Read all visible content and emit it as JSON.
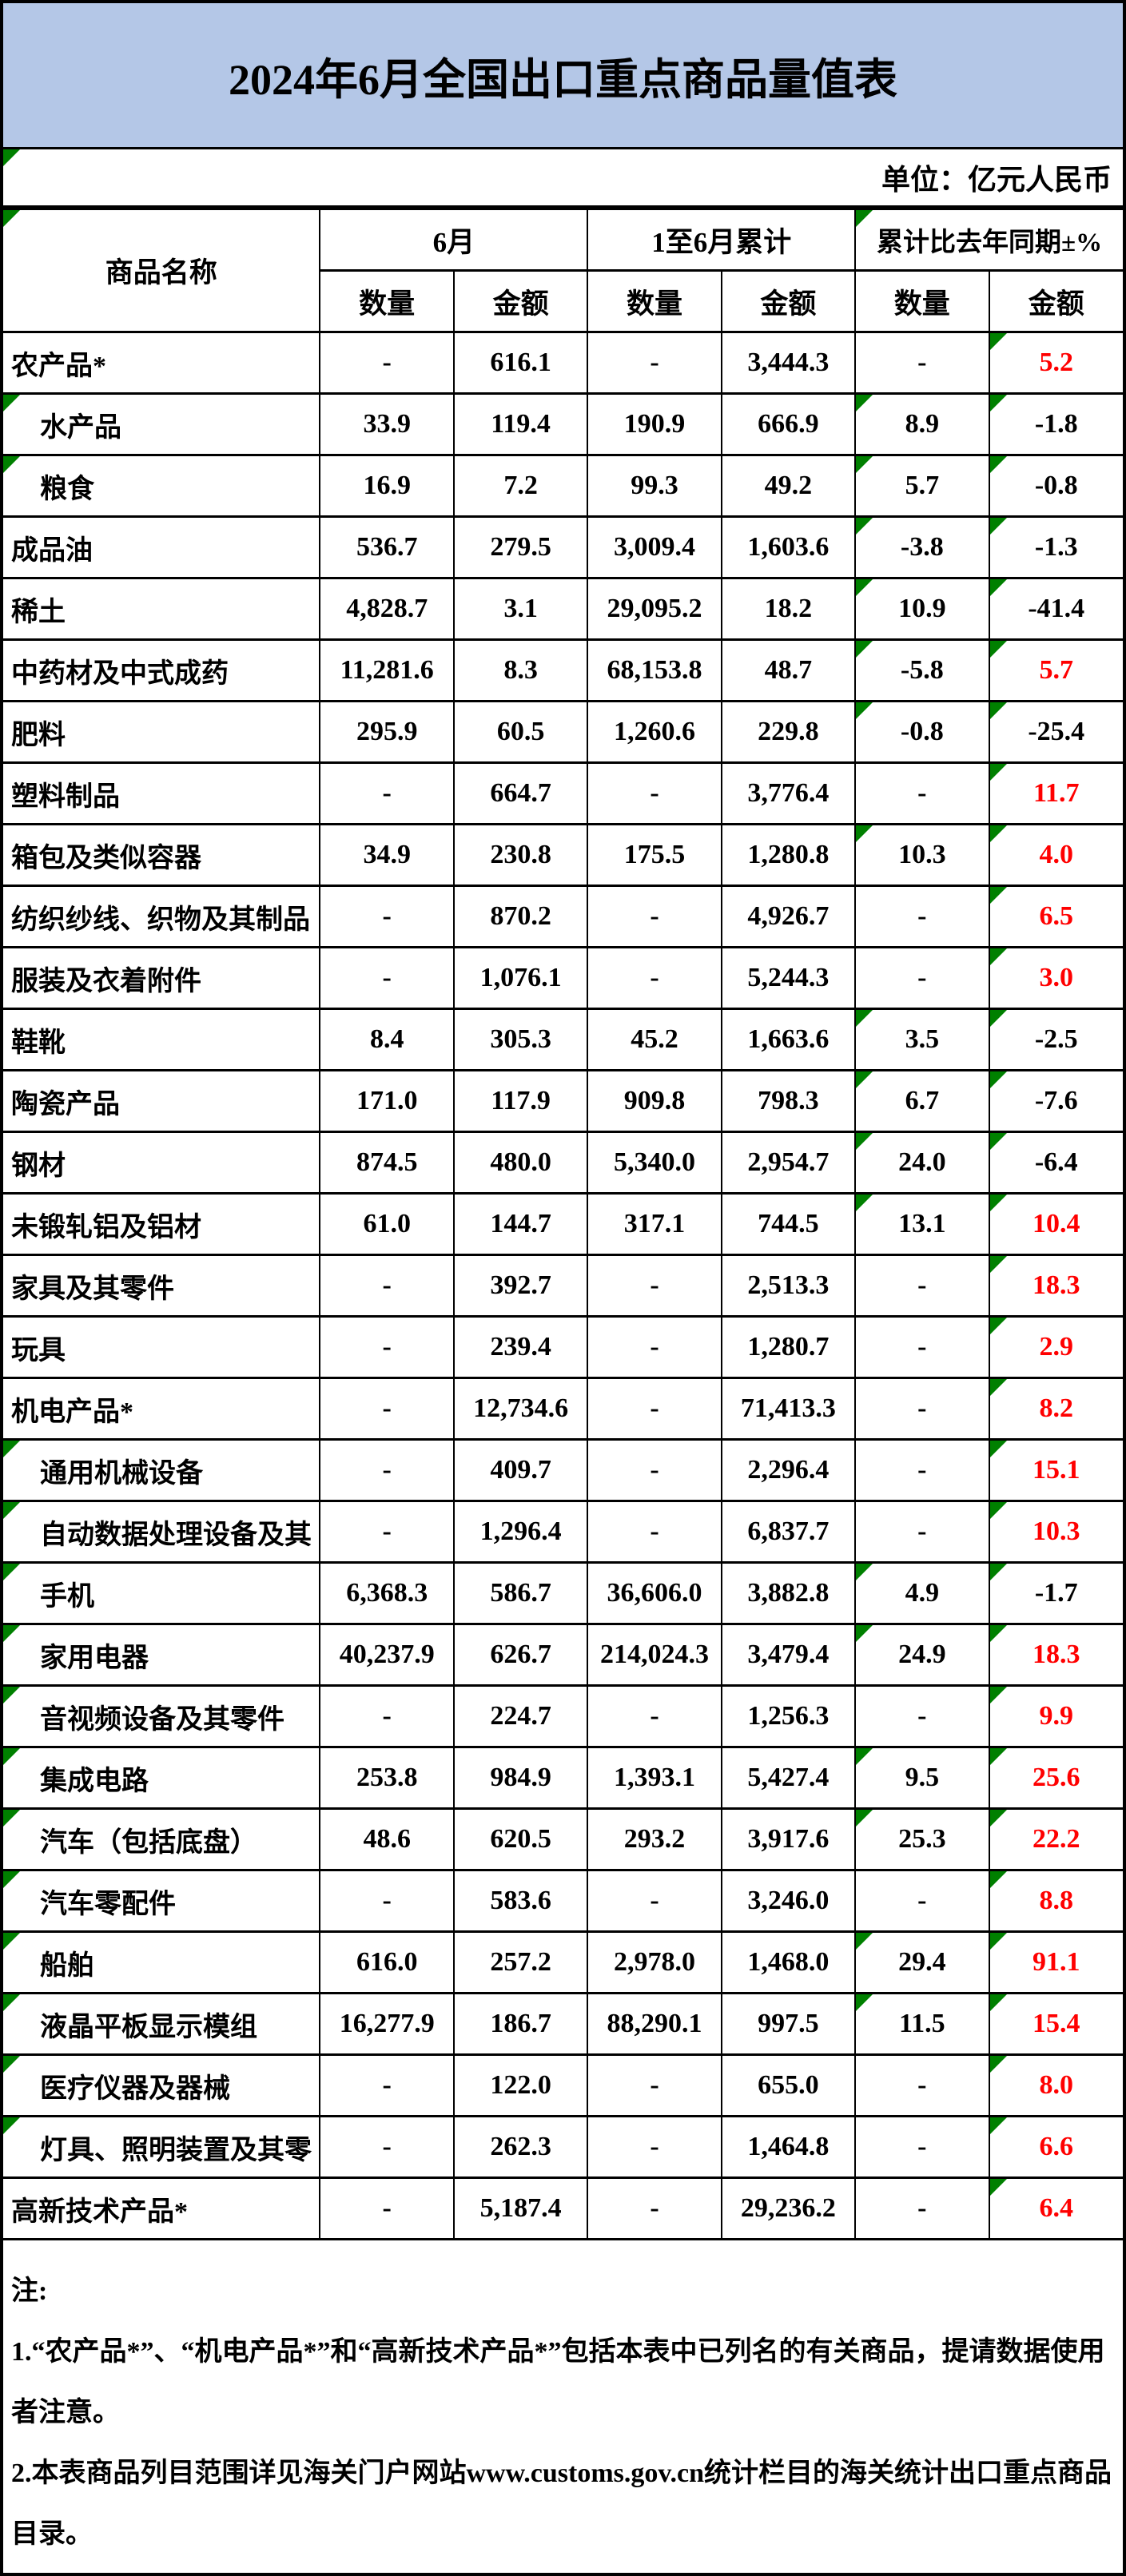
{
  "page": {
    "title": "2024年6月全国出口重点商品量值表"
  },
  "unit_label": "单位：亿元人民币",
  "table": {
    "headers": {
      "commodity": "商品名称",
      "june": "6月",
      "cumulative": "1至6月累计",
      "yoy": "累计比去年同期±%",
      "qty": "数量",
      "amt": "金额"
    },
    "rows": [
      {
        "name": "农产品*",
        "indent": false,
        "q6": "-",
        "a6": "616.1",
        "qc": "-",
        "ac": "3,444.3",
        "qp": "-",
        "ap": "5.2"
      },
      {
        "name": "水产品",
        "indent": true,
        "q6": "33.9",
        "a6": "119.4",
        "qc": "190.9",
        "ac": "666.9",
        "qp": "8.9",
        "ap": "-1.8"
      },
      {
        "name": "粮食",
        "indent": true,
        "q6": "16.9",
        "a6": "7.2",
        "qc": "99.3",
        "ac": "49.2",
        "qp": "5.7",
        "ap": "-0.8"
      },
      {
        "name": "成品油",
        "indent": false,
        "q6": "536.7",
        "a6": "279.5",
        "qc": "3,009.4",
        "ac": "1,603.6",
        "qp": "-3.8",
        "ap": "-1.3"
      },
      {
        "name": "稀土",
        "indent": false,
        "q6": "4,828.7",
        "a6": "3.1",
        "qc": "29,095.2",
        "ac": "18.2",
        "qp": "10.9",
        "ap": "-41.4"
      },
      {
        "name": "中药材及中式成药",
        "indent": false,
        "q6": "11,281.6",
        "a6": "8.3",
        "qc": "68,153.8",
        "ac": "48.7",
        "qp": "-5.8",
        "ap": "5.7"
      },
      {
        "name": "肥料",
        "indent": false,
        "q6": "295.9",
        "a6": "60.5",
        "qc": "1,260.6",
        "ac": "229.8",
        "qp": "-0.8",
        "ap": "-25.4"
      },
      {
        "name": "塑料制品",
        "indent": false,
        "q6": "-",
        "a6": "664.7",
        "qc": "-",
        "ac": "3,776.4",
        "qp": "-",
        "ap": "11.7"
      },
      {
        "name": "箱包及类似容器",
        "indent": false,
        "q6": "34.9",
        "a6": "230.8",
        "qc": "175.5",
        "ac": "1,280.8",
        "qp": "10.3",
        "ap": "4.0"
      },
      {
        "name": "纺织纱线、织物及其制品",
        "indent": false,
        "q6": "-",
        "a6": "870.2",
        "qc": "-",
        "ac": "4,926.7",
        "qp": "-",
        "ap": "6.5"
      },
      {
        "name": "服装及衣着附件",
        "indent": false,
        "q6": "-",
        "a6": "1,076.1",
        "qc": "-",
        "ac": "5,244.3",
        "qp": "-",
        "ap": "3.0"
      },
      {
        "name": "鞋靴",
        "indent": false,
        "q6": "8.4",
        "a6": "305.3",
        "qc": "45.2",
        "ac": "1,663.6",
        "qp": "3.5",
        "ap": "-2.5"
      },
      {
        "name": "陶瓷产品",
        "indent": false,
        "q6": "171.0",
        "a6": "117.9",
        "qc": "909.8",
        "ac": "798.3",
        "qp": "6.7",
        "ap": "-7.6"
      },
      {
        "name": "钢材",
        "indent": false,
        "q6": "874.5",
        "a6": "480.0",
        "qc": "5,340.0",
        "ac": "2,954.7",
        "qp": "24.0",
        "ap": "-6.4"
      },
      {
        "name": "未锻轧铝及铝材",
        "indent": false,
        "q6": "61.0",
        "a6": "144.7",
        "qc": "317.1",
        "ac": "744.5",
        "qp": "13.1",
        "ap": "10.4"
      },
      {
        "name": "家具及其零件",
        "indent": false,
        "q6": "-",
        "a6": "392.7",
        "qc": "-",
        "ac": "2,513.3",
        "qp": "-",
        "ap": "18.3"
      },
      {
        "name": "玩具",
        "indent": false,
        "q6": "-",
        "a6": "239.4",
        "qc": "-",
        "ac": "1,280.7",
        "qp": "-",
        "ap": "2.9"
      },
      {
        "name": "机电产品*",
        "indent": false,
        "q6": "-",
        "a6": "12,734.6",
        "qc": "-",
        "ac": "71,413.3",
        "qp": "-",
        "ap": "8.2"
      },
      {
        "name": "通用机械设备",
        "indent": true,
        "q6": "-",
        "a6": "409.7",
        "qc": "-",
        "ac": "2,296.4",
        "qp": "-",
        "ap": "15.1"
      },
      {
        "name": "自动数据处理设备及其",
        "indent": true,
        "q6": "-",
        "a6": "1,296.4",
        "qc": "-",
        "ac": "6,837.7",
        "qp": "-",
        "ap": "10.3"
      },
      {
        "name": "手机",
        "indent": true,
        "q6": "6,368.3",
        "a6": "586.7",
        "qc": "36,606.0",
        "ac": "3,882.8",
        "qp": "4.9",
        "ap": "-1.7"
      },
      {
        "name": "家用电器",
        "indent": true,
        "q6": "40,237.9",
        "a6": "626.7",
        "qc": "214,024.3",
        "ac": "3,479.4",
        "qp": "24.9",
        "ap": "18.3"
      },
      {
        "name": "音视频设备及其零件",
        "indent": true,
        "q6": "-",
        "a6": "224.7",
        "qc": "-",
        "ac": "1,256.3",
        "qp": "-",
        "ap": "9.9"
      },
      {
        "name": "集成电路",
        "indent": true,
        "q6": "253.8",
        "a6": "984.9",
        "qc": "1,393.1",
        "ac": "5,427.4",
        "qp": "9.5",
        "ap": "25.6"
      },
      {
        "name": "汽车（包括底盘）",
        "indent": true,
        "q6": "48.6",
        "a6": "620.5",
        "qc": "293.2",
        "ac": "3,917.6",
        "qp": "25.3",
        "ap": "22.2"
      },
      {
        "name": "汽车零配件",
        "indent": true,
        "q6": "-",
        "a6": "583.6",
        "qc": "-",
        "ac": "3,246.0",
        "qp": "-",
        "ap": "8.8"
      },
      {
        "name": "船舶",
        "indent": true,
        "q6": "616.0",
        "a6": "257.2",
        "qc": "2,978.0",
        "ac": "1,468.0",
        "qp": "29.4",
        "ap": "91.1"
      },
      {
        "name": "液晶平板显示模组",
        "indent": true,
        "q6": "16,277.9",
        "a6": "186.7",
        "qc": "88,290.1",
        "ac": "997.5",
        "qp": "11.5",
        "ap": "15.4"
      },
      {
        "name": "医疗仪器及器械",
        "indent": true,
        "q6": "-",
        "a6": "122.0",
        "qc": "-",
        "ac": "655.0",
        "qp": "-",
        "ap": "8.0"
      },
      {
        "name": "灯具、照明装置及其零",
        "indent": true,
        "q6": "-",
        "a6": "262.3",
        "qc": "-",
        "ac": "1,464.8",
        "qp": "-",
        "ap": "6.6"
      },
      {
        "name": "高新技术产品*",
        "indent": false,
        "q6": "-",
        "a6": "5,187.4",
        "qc": "-",
        "ac": "29,236.2",
        "qp": "-",
        "ap": "6.4"
      }
    ]
  },
  "notes": {
    "label": "注:",
    "items": [
      "1.“农产品*”、“机电产品*”和“高新技术产品*”包括本表中已列名的有关商品，提请数据使用者注意。",
      "2.本表商品列目范围详见海关门户网站www.customs.gov.cn统计栏目的海关统计出口重点商品目录。"
    ]
  },
  "colors": {
    "banner_blue": "#B4C7E7",
    "positive_red": "#FF0000",
    "triangle_green": "#008000"
  }
}
